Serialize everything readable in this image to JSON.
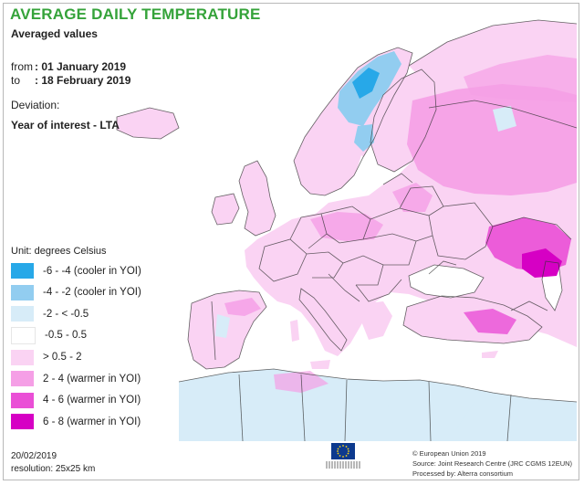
{
  "title": "AVERAGE DAILY TEMPERATURE",
  "subtitle": "Averaged values",
  "period": {
    "from_label": "from",
    "from_value": ": 01 January 2019",
    "to_label": "to",
    "to_value": ": 18 February 2019"
  },
  "deviation_label": "Deviation:",
  "comparison": "Year of interest - LTA",
  "unit": "Unit: degrees Celsius",
  "legend": [
    {
      "label": "-6 - -4 (cooler in YOI)",
      "color": "#27a8e8"
    },
    {
      "label": "-4 - -2 (cooler in YOI)",
      "color": "#92cdf0"
    },
    {
      "label": "-2 - < -0.5",
      "color": "#d7ecf8"
    },
    {
      "label": "-0.5 - 0.5",
      "color": "#ffffff"
    },
    {
      "label": "> 0.5 - 2",
      "color": "#fad3f3"
    },
    {
      "label": "2 - 4 (warmer in YOI)",
      "color": "#f59fe6"
    },
    {
      "label": "4 - 6 (warmer in YOI)",
      "color": "#ea4fd6"
    },
    {
      "label": "6 - 8 (warmer in YOI)",
      "color": "#d600c4"
    }
  ],
  "date": "20/02/2019",
  "resolution": "resolution: 25x25 km",
  "credits": {
    "copyright": "© European Union 2019",
    "source": "Source: Joint Research Centre (JRC CGMS 12EUN)",
    "processed": "Processed by: Alterra consortium"
  },
  "colors": {
    "title": "#35a33a",
    "sea": "#ffffff",
    "border": "#333333"
  }
}
